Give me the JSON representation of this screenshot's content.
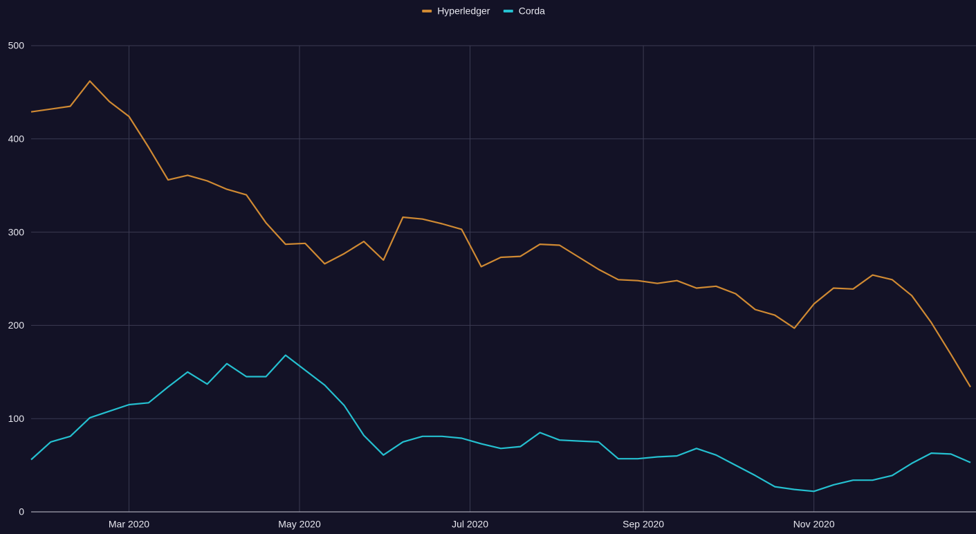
{
  "chart_data": {
    "type": "line",
    "x": [
      "2020-01-26",
      "2020-02-02",
      "2020-02-09",
      "2020-02-16",
      "2020-02-23",
      "2020-03-01",
      "2020-03-08",
      "2020-03-15",
      "2020-03-22",
      "2020-03-29",
      "2020-04-05",
      "2020-04-12",
      "2020-04-19",
      "2020-04-26",
      "2020-05-03",
      "2020-05-10",
      "2020-05-17",
      "2020-05-24",
      "2020-05-31",
      "2020-06-07",
      "2020-06-14",
      "2020-06-21",
      "2020-06-28",
      "2020-07-05",
      "2020-07-12",
      "2020-07-19",
      "2020-07-26",
      "2020-08-02",
      "2020-08-09",
      "2020-08-16",
      "2020-08-23",
      "2020-08-30",
      "2020-09-06",
      "2020-09-13",
      "2020-09-20",
      "2020-09-27",
      "2020-10-04",
      "2020-10-11",
      "2020-10-18",
      "2020-10-25",
      "2020-11-01",
      "2020-11-08",
      "2020-11-15",
      "2020-11-22",
      "2020-11-29",
      "2020-12-06",
      "2020-12-13",
      "2020-12-20",
      "2020-12-27"
    ],
    "series": [
      {
        "name": "Hyperledger",
        "color": "#d08a33",
        "values": [
          429,
          432,
          435,
          462,
          440,
          424,
          391,
          356,
          361,
          355,
          346,
          340,
          310,
          287,
          288,
          266,
          277,
          290,
          270,
          316,
          314,
          309,
          303,
          263,
          273,
          274,
          287,
          286,
          273,
          260,
          249,
          248,
          245,
          248,
          240,
          242,
          234,
          217,
          211,
          197,
          223,
          240,
          239,
          254,
          249,
          232,
          203,
          169,
          134
        ]
      },
      {
        "name": "Corda",
        "color": "#25c0d0",
        "values": [
          56,
          75,
          81,
          101,
          108,
          115,
          117,
          134,
          150,
          137,
          159,
          145,
          145,
          168,
          152,
          136,
          114,
          82,
          61,
          75,
          81,
          81,
          79,
          73,
          68,
          70,
          85,
          77,
          76,
          75,
          57,
          57,
          59,
          60,
          68,
          61,
          50,
          39,
          27,
          24,
          22,
          29,
          34,
          34,
          39,
          52,
          63,
          62,
          53
        ]
      }
    ],
    "xlim": [
      "2020-01-26",
      "2020-12-27"
    ],
    "xticks": [
      {
        "value": "2020-03-01",
        "label": "Mar 2020"
      },
      {
        "value": "2020-05-01",
        "label": "May 2020"
      },
      {
        "value": "2020-07-01",
        "label": "Jul 2020"
      },
      {
        "value": "2020-09-01",
        "label": "Sep 2020"
      },
      {
        "value": "2020-11-01",
        "label": "Nov 2020"
      }
    ],
    "ylim": [
      0,
      500
    ],
    "yticks": [
      0,
      100,
      200,
      300,
      400,
      500
    ],
    "grid": true,
    "legend": "top"
  }
}
